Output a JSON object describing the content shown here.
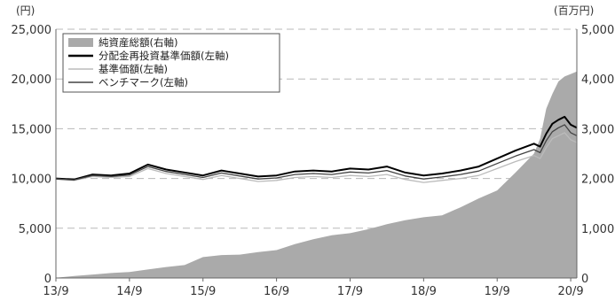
{
  "chart_data": {
    "type": "area",
    "left_axis_unit": "(円)",
    "right_axis_unit": "(百万円)",
    "x_ticks": [
      "13/9",
      "14/9",
      "15/9",
      "16/9",
      "17/9",
      "18/9",
      "19/9",
      "20/9"
    ],
    "y_left": {
      "min": 0,
      "max": 25000,
      "ticks": [
        "0",
        "5,000",
        "10,000",
        "15,000",
        "20,000",
        "25,000"
      ]
    },
    "y_right": {
      "min": 0,
      "max": 5000,
      "ticks": [
        "0",
        "1,000",
        "2,000",
        "3,000",
        "4,000",
        "5,000"
      ]
    },
    "grid": "horizontal-dashed",
    "legend_position": "top-left",
    "x_months": [
      0,
      3,
      6,
      9,
      12,
      15,
      18,
      21,
      24,
      27,
      30,
      33,
      36,
      39,
      42,
      45,
      48,
      51,
      54,
      57,
      60,
      63,
      66,
      69,
      72,
      75,
      78,
      79,
      80,
      81,
      82,
      83,
      84,
      85
    ],
    "series": [
      {
        "name": "純資産総額(右軸)",
        "axis": "right",
        "style": "area",
        "color": "#aaaaaa",
        "values": [
          5,
          40,
          70,
          100,
          120,
          170,
          220,
          260,
          420,
          460,
          470,
          520,
          560,
          680,
          780,
          860,
          900,
          980,
          1080,
          1160,
          1220,
          1260,
          1420,
          1600,
          1760,
          2120,
          2500,
          2800,
          3400,
          3700,
          3950,
          4050,
          4100,
          4150
        ]
      },
      {
        "name": "分配金再投資基準価額(左軸)",
        "axis": "left",
        "style": "line",
        "color": "#000000",
        "values": [
          10000,
          9900,
          10400,
          10300,
          10500,
          11400,
          10900,
          10600,
          10300,
          10800,
          10500,
          10200,
          10300,
          10700,
          10800,
          10700,
          11000,
          10900,
          11200,
          10600,
          10300,
          10500,
          10800,
          11200,
          12000,
          12800,
          13500,
          13200,
          14500,
          15500,
          15900,
          16200,
          15400,
          15100
        ]
      },
      {
        "name": "基準価額(左軸)",
        "axis": "left",
        "style": "line",
        "color": "#bbbbbb",
        "values": [
          9950,
          9800,
          10200,
          10100,
          10200,
          11000,
          10500,
          10200,
          9900,
          10300,
          10000,
          9700,
          9800,
          10100,
          10200,
          10100,
          10300,
          10200,
          10400,
          9900,
          9600,
          9800,
          10000,
          10300,
          11000,
          11700,
          12300,
          12000,
          13100,
          14000,
          14300,
          14600,
          13900,
          13600
        ]
      },
      {
        "name": "ベンチマーク(左軸)",
        "axis": "left",
        "style": "line",
        "color": "#444444",
        "values": [
          9950,
          9850,
          10300,
          10200,
          10350,
          11200,
          10700,
          10400,
          10100,
          10550,
          10250,
          9950,
          10050,
          10400,
          10500,
          10400,
          10650,
          10550,
          10800,
          10250,
          9950,
          10150,
          10400,
          10750,
          11500,
          12250,
          12900,
          12600,
          13800,
          14700,
          15100,
          15400,
          14600,
          14300
        ]
      }
    ]
  }
}
